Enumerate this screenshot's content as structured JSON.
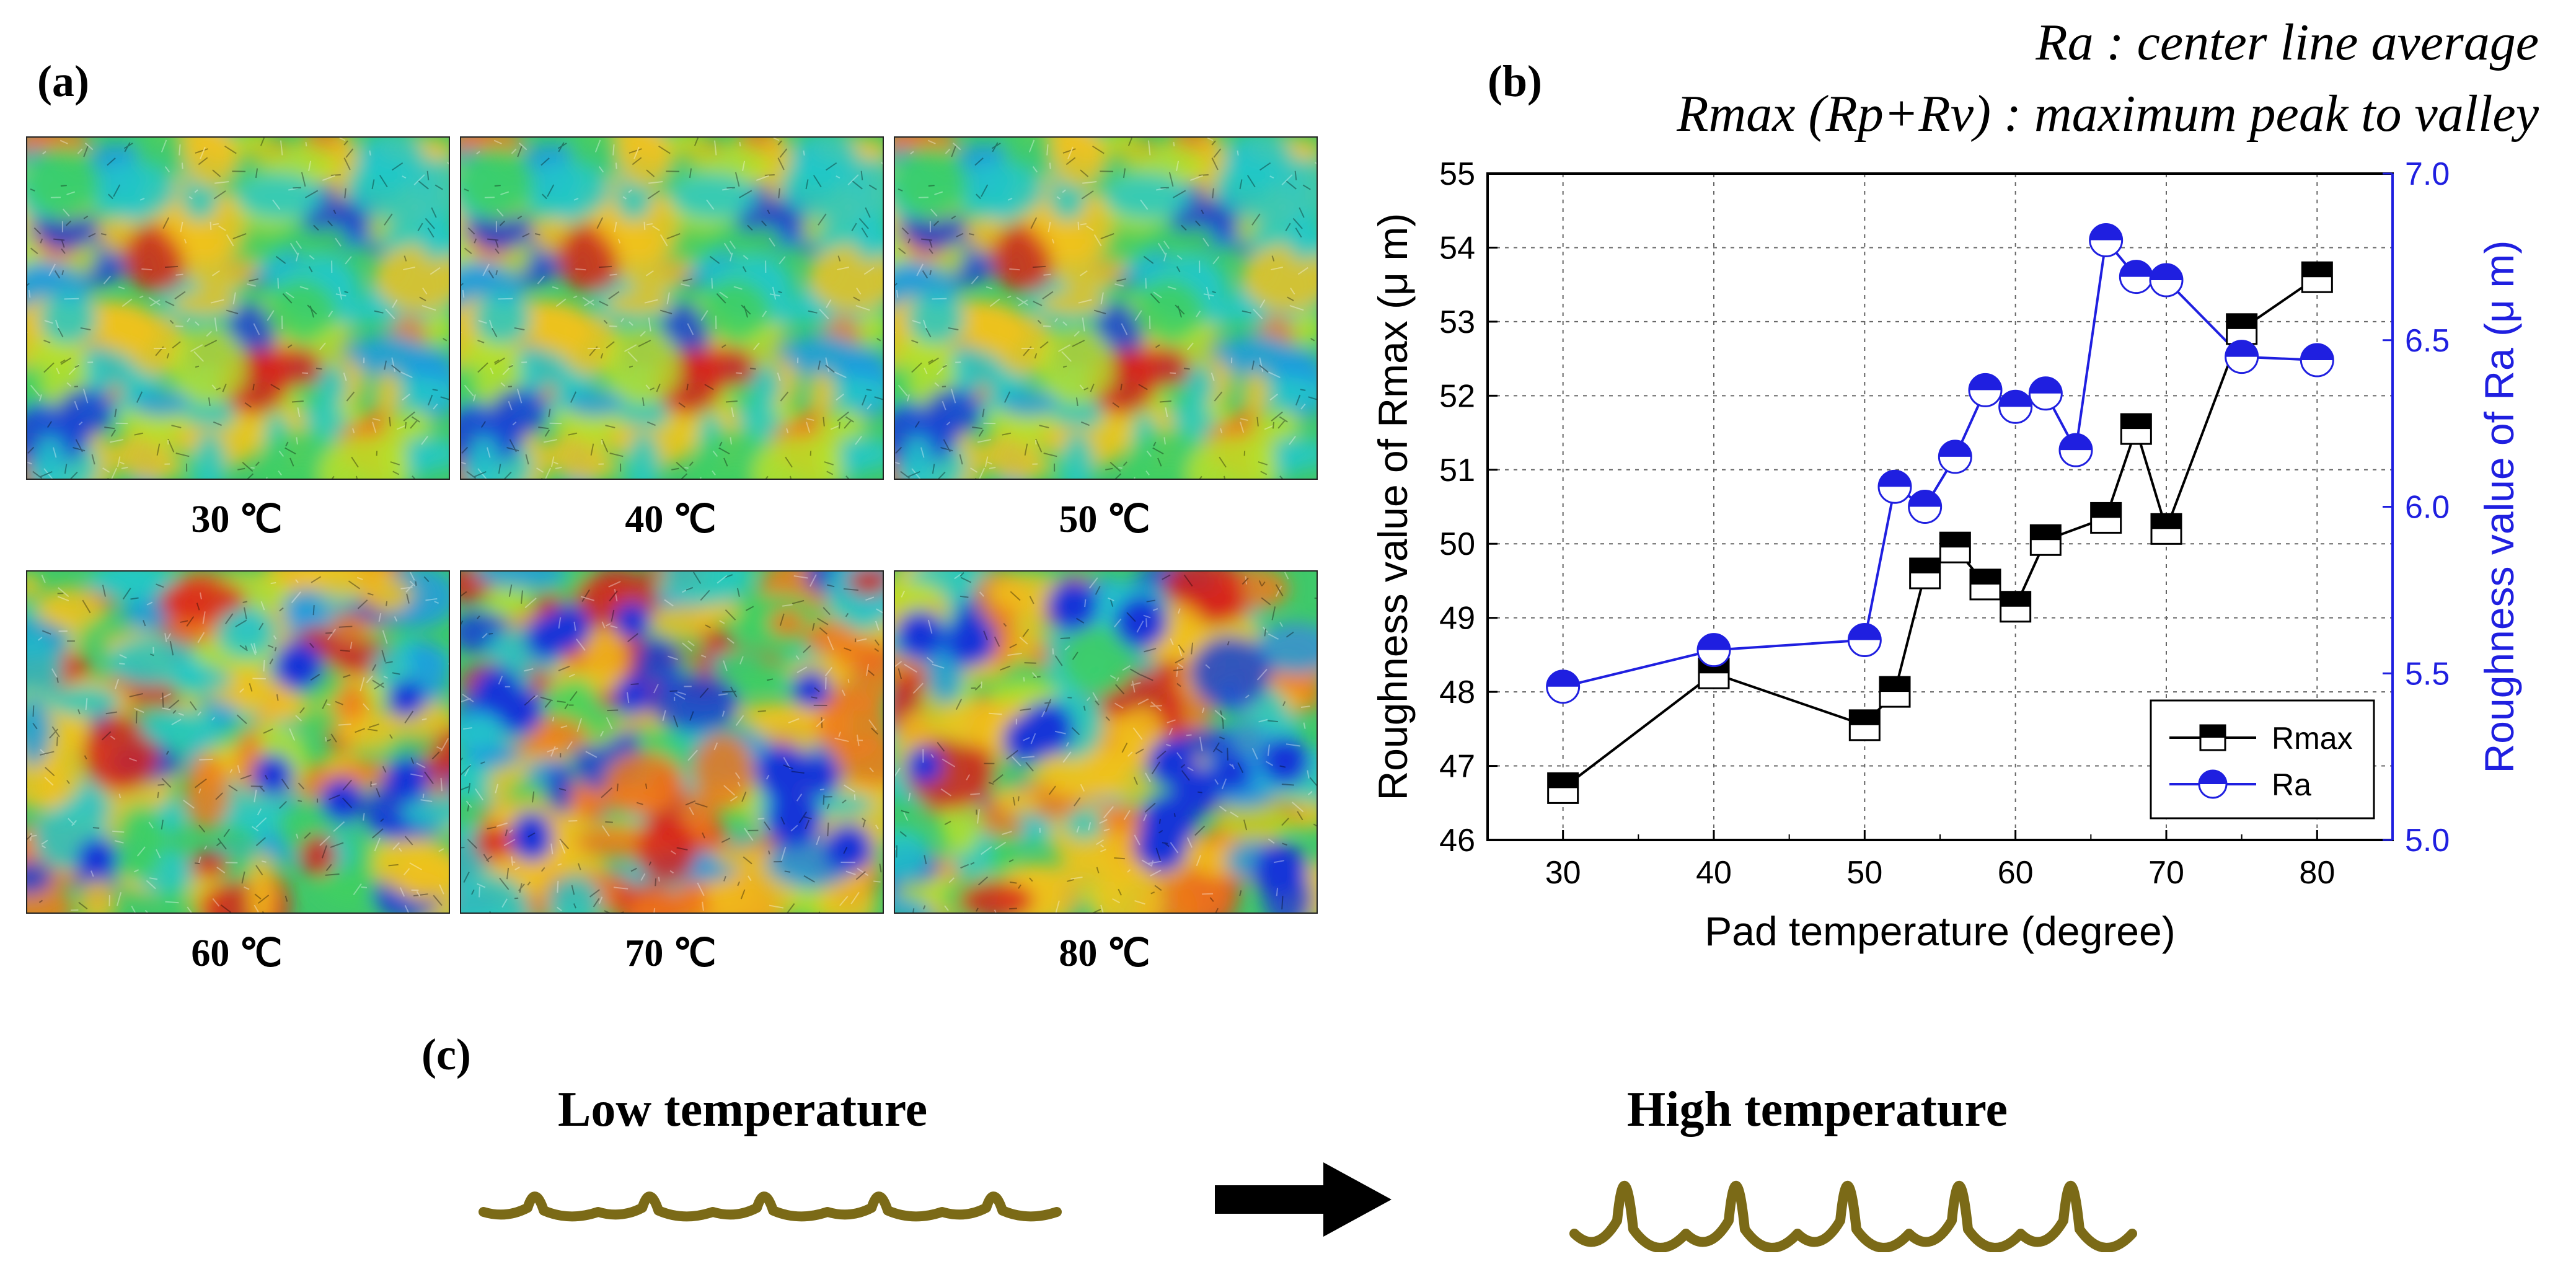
{
  "panels": {
    "a": "(a)",
    "b": "(b)",
    "c": "(c)"
  },
  "definitions": {
    "ra": "Ra : center line average",
    "rmax": "Rmax (Rp+Rv) : maximum peak to valley"
  },
  "afm_maps": {
    "labels": [
      "30 ℃",
      "40 ℃",
      "50 ℃",
      "60 ℃",
      "70 ℃",
      "80 ℃"
    ],
    "red_fraction": [
      0.2,
      0.2,
      0.2,
      0.35,
      0.55,
      0.6
    ]
  },
  "wave": {
    "low_title": "Low temperature",
    "high_title": "High temperature",
    "color": "#7b6a17"
  },
  "chart_data": {
    "type": "scatter",
    "xlabel": "Pad temperature (degree)",
    "ylabel_left": "Roughness value of Rmax (μ m)",
    "ylabel_right": "Roughness value of Ra (μ m)",
    "xlim": [
      25,
      85
    ],
    "xticks": [
      30,
      40,
      50,
      60,
      70,
      80
    ],
    "ylim_left": [
      46,
      55
    ],
    "yticks_left": [
      46,
      47,
      48,
      49,
      50,
      51,
      52,
      53,
      54,
      55
    ],
    "ylim_right": [
      5.0,
      7.0
    ],
    "yticks_right": [
      "5.0",
      "5.5",
      "6.0",
      "6.5",
      "7.0"
    ],
    "grid": true,
    "legend_position": "bottom-right",
    "series": [
      {
        "name": "Rmax",
        "axis": "left",
        "color": "#000000",
        "marker": "half-square",
        "x": [
          30,
          40,
          50,
          52,
          54,
          56,
          58,
          60,
          62,
          66,
          68,
          70,
          75,
          80
        ],
        "values": [
          46.7,
          48.25,
          47.55,
          48.0,
          49.6,
          49.95,
          49.45,
          49.15,
          50.05,
          50.35,
          51.55,
          50.2,
          52.9,
          53.6
        ]
      },
      {
        "name": "Ra",
        "axis": "right",
        "color": "#1f1fe0",
        "marker": "half-circle",
        "x": [
          30,
          40,
          50,
          52,
          54,
          56,
          58,
          60,
          62,
          64,
          66,
          68,
          70,
          75,
          80
        ],
        "values": [
          5.46,
          5.57,
          5.6,
          6.06,
          6.0,
          6.15,
          6.35,
          6.3,
          6.34,
          6.17,
          6.8,
          6.69,
          6.68,
          6.45,
          6.44
        ]
      }
    ]
  }
}
